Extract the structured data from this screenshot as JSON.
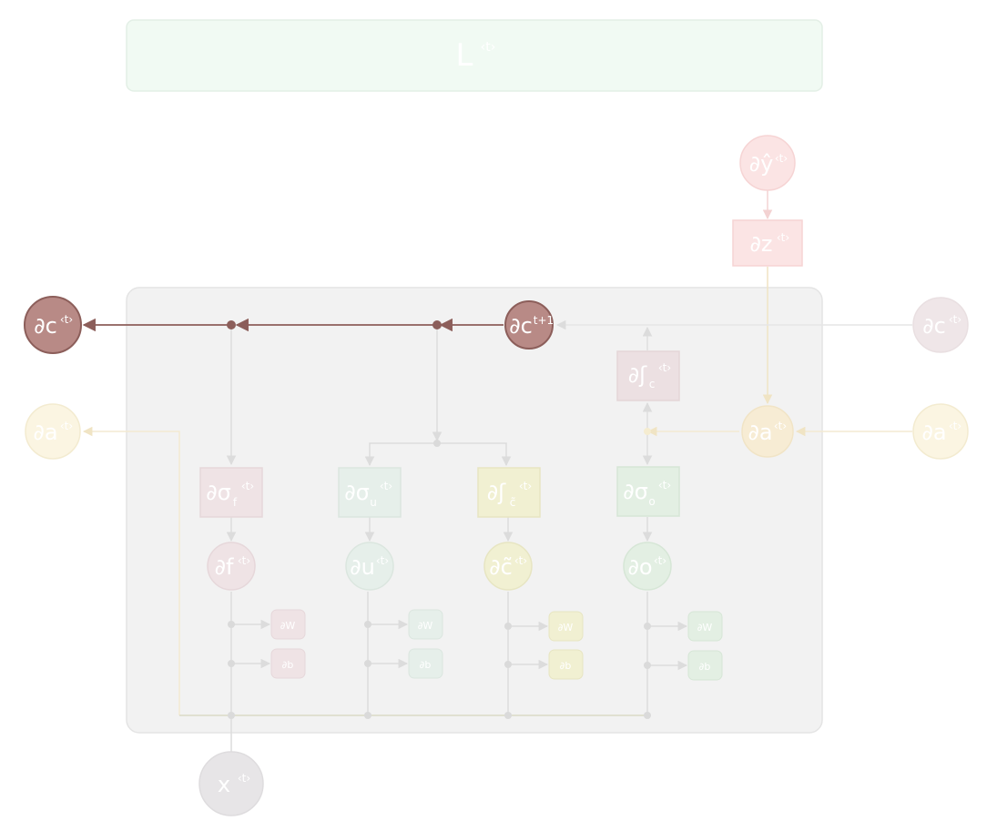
{
  "title": {
    "main": "L",
    "sup": "‹t›"
  },
  "colors": {
    "panel_fill": "#f2f2f2",
    "panel_stroke": "#e4e4e4",
    "loss_fill": "#f1faf3",
    "loss_stroke": "#e3efe6",
    "cell_active": "#b88a86",
    "cell_active_stroke": "#8c5e5a",
    "active_line": "#8c5e5a",
    "faded_line": "#e6e6e6",
    "pink_fill": "#fbe4e4",
    "pink_stroke": "#f6d4d4",
    "yellow_fill": "#fbf5e2",
    "yellow_stroke": "#f3ebd0",
    "forget_fill": "#efe3e5",
    "update_fill": "#e6efea",
    "candidate_fill": "#f1f0d2",
    "output_fill": "#e3efe3",
    "input_fill": "#e7e5e7"
  },
  "nodes": {
    "dc_prev": {
      "main": "∂c",
      "sup": "‹t›"
    },
    "dc_next": {
      "main": "∂c",
      "sup": "t+1"
    },
    "dc_right": {
      "main": "∂c",
      "sup": "‹t›"
    },
    "da_left": {
      "main": "∂a",
      "sup": "‹t›"
    },
    "da_mid": {
      "main": "∂a",
      "sup": "‹t›"
    },
    "da_right": {
      "main": "∂a",
      "sup": "‹t›"
    },
    "dyhat": {
      "main": "∂ŷ",
      "sup": "‹t›"
    },
    "dz": {
      "main": "∂z",
      "sup": "‹t›"
    },
    "dtanh_c": {
      "main": "∂ʃ",
      "sub": "c",
      "sup": "‹t›"
    },
    "dsig_f": {
      "main": "∂σ",
      "sub": "f",
      "sup": "‹t›"
    },
    "dsig_u": {
      "main": "∂σ",
      "sub": "u",
      "sup": "‹t›"
    },
    "dtanh_ct": {
      "main": "∂ʃ",
      "sub": "c̃",
      "sup": "‹t›"
    },
    "dsig_o": {
      "main": "∂σ",
      "sub": "o",
      "sup": "‹t›"
    },
    "df": {
      "main": "∂f",
      "sup": "‹t›"
    },
    "du": {
      "main": "∂u",
      "sup": "‹t›"
    },
    "dct": {
      "main": "∂c̃",
      "sup": "‹t›"
    },
    "do": {
      "main": "∂o",
      "sup": "‹t›"
    },
    "x": {
      "main": "x",
      "sup": "‹t›"
    }
  },
  "param_boxes": {
    "w_f": "∂W",
    "b_f": "∂b",
    "w_u": "∂W",
    "b_u": "∂b",
    "w_c": "∂W",
    "b_c": "∂b",
    "w_o": "∂W",
    "b_o": "∂b"
  }
}
